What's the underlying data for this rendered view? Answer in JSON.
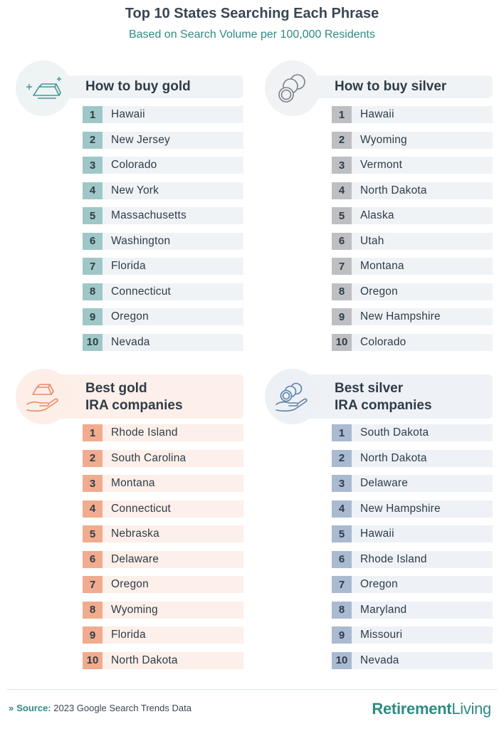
{
  "title": "Top 10 States Searching Each Phrase",
  "subtitle": "Based on Search Volume per 100,000 Residents",
  "panels": [
    {
      "heading_line1": "How to buy gold",
      "heading_line2": "",
      "icon": "gold-bars-icon",
      "accent": "#9fc7c7",
      "rows": [
        {
          "rank": "1",
          "state": "Hawaii"
        },
        {
          "rank": "2",
          "state": "New Jersey"
        },
        {
          "rank": "3",
          "state": "Colorado"
        },
        {
          "rank": "4",
          "state": "New York"
        },
        {
          "rank": "5",
          "state": "Massachusetts"
        },
        {
          "rank": "6",
          "state": "Washington"
        },
        {
          "rank": "7",
          "state": "Florida"
        },
        {
          "rank": "8",
          "state": "Connecticut"
        },
        {
          "rank": "9",
          "state": "Oregon"
        },
        {
          "rank": "10",
          "state": "Nevada"
        }
      ]
    },
    {
      "heading_line1": "How to buy silver",
      "heading_line2": "",
      "icon": "silver-coins-icon",
      "accent": "#bdbfc3",
      "rows": [
        {
          "rank": "1",
          "state": "Hawaii"
        },
        {
          "rank": "2",
          "state": "Wyoming"
        },
        {
          "rank": "3",
          "state": "Vermont"
        },
        {
          "rank": "4",
          "state": "North Dakota"
        },
        {
          "rank": "5",
          "state": "Alaska"
        },
        {
          "rank": "6",
          "state": "Utah"
        },
        {
          "rank": "7",
          "state": "Montana"
        },
        {
          "rank": "8",
          "state": "Oregon"
        },
        {
          "rank": "9",
          "state": "New Hampshire"
        },
        {
          "rank": "10",
          "state": "Colorado"
        }
      ]
    },
    {
      "heading_line1": "Best gold",
      "heading_line2": "IRA companies",
      "icon": "hand-gold-bars-icon",
      "accent": "#f1ab8e",
      "rows": [
        {
          "rank": "1",
          "state": "Rhode Island"
        },
        {
          "rank": "2",
          "state": "South Carolina"
        },
        {
          "rank": "3",
          "state": "Montana"
        },
        {
          "rank": "4",
          "state": "Connecticut"
        },
        {
          "rank": "5",
          "state": "Nebraska"
        },
        {
          "rank": "6",
          "state": "Delaware"
        },
        {
          "rank": "7",
          "state": "Oregon"
        },
        {
          "rank": "8",
          "state": "Wyoming"
        },
        {
          "rank": "9",
          "state": "Florida"
        },
        {
          "rank": "10",
          "state": "North Dakota"
        }
      ]
    },
    {
      "heading_line1": "Best silver",
      "heading_line2": "IRA companies",
      "icon": "hand-silver-coins-icon",
      "accent": "#a9bad1",
      "rows": [
        {
          "rank": "1",
          "state": "South Dakota"
        },
        {
          "rank": "2",
          "state": "North Dakota"
        },
        {
          "rank": "3",
          "state": "Delaware"
        },
        {
          "rank": "4",
          "state": "New Hampshire"
        },
        {
          "rank": "5",
          "state": "Hawaii"
        },
        {
          "rank": "6",
          "state": "Rhode Island"
        },
        {
          "rank": "7",
          "state": "Oregon"
        },
        {
          "rank": "8",
          "state": "Maryland"
        },
        {
          "rank": "9",
          "state": "Missouri"
        },
        {
          "rank": "10",
          "state": "Nevada"
        }
      ]
    }
  ],
  "footer": {
    "arrow": "»",
    "source_label": "Source:",
    "source_text": "2023 Google Search Trends Data",
    "brand_bold": "Retirement",
    "brand_light": "Living",
    "brand_color": "#2e8b84"
  }
}
